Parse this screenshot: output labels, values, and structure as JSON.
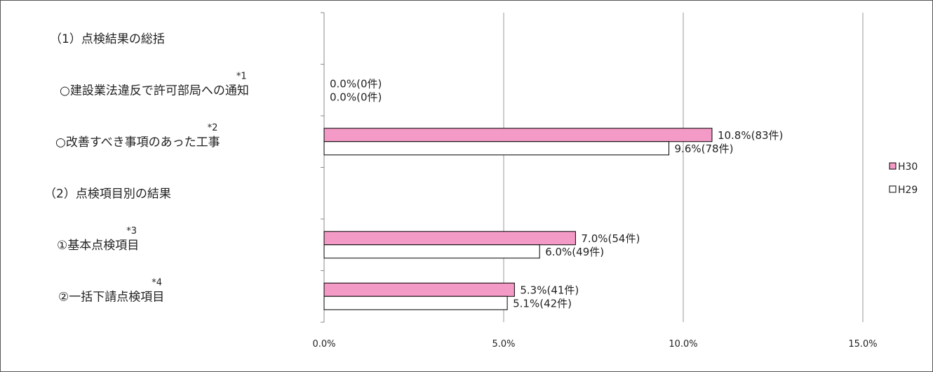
{
  "chart_data": {
    "type": "bar",
    "orientation": "horizontal",
    "categories": [
      {
        "label": "（1）点検結果の総括",
        "note": ""
      },
      {
        "label": "○建設業法違反で許可部局への通知",
        "note": "*1"
      },
      {
        "label": "○改善すべき事項のあった工事",
        "note": "*2"
      },
      {
        "label": "（2）点検項目別の結果",
        "note": ""
      },
      {
        "label": "①基本点検項目",
        "note": "*3"
      },
      {
        "label": "②一括下請点検項目",
        "note": "*4"
      }
    ],
    "series": [
      {
        "name": "H30",
        "color": "#f49ac6",
        "values": [
          null,
          0.0,
          10.8,
          null,
          7.0,
          5.3
        ],
        "labels": [
          "",
          "0.0%(0件)",
          "10.8%(83件)",
          "",
          "7.0%(54件)",
          "5.3%(41件)"
        ]
      },
      {
        "name": "H29",
        "color": "#ffffff",
        "values": [
          null,
          0.0,
          9.6,
          null,
          6.0,
          5.1
        ],
        "labels": [
          "",
          "0.0%(0件)",
          "9.6%(78件)",
          "",
          "6.0%(49件)",
          "5.1%(42件)"
        ]
      }
    ],
    "x_ticks": [
      "0.0%",
      "5.0%",
      "10.0%",
      "15.0%"
    ],
    "xlim": [
      0,
      15
    ],
    "grid": true,
    "legend_position": "right"
  }
}
